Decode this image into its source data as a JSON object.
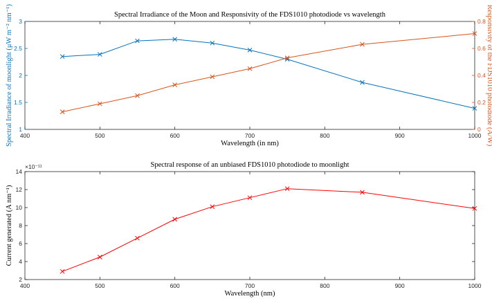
{
  "chart_data": [
    {
      "type": "line",
      "title": "Spectral Irradiance of the Moon and Responsivity of the FDS1010 photodiode vs wavelength",
      "xlabel": "Wavelength (in nm)",
      "xlim": [
        400,
        1000
      ],
      "x_ticks": [
        "400",
        "500",
        "600",
        "700",
        "800",
        "900",
        "1000"
      ],
      "axes": {
        "left": {
          "label": "Spectral Irradiance of moonlight (μW m⁻² nm⁻¹)",
          "ylim": [
            1,
            3
          ],
          "ticks": [
            "1",
            "1.5",
            "2",
            "2.5",
            "3"
          ],
          "color": "#0072bd"
        },
        "right": {
          "label": "Responsivity of the FDS1010 photodiode (A/W)",
          "ylim": [
            0,
            0.8
          ],
          "ticks": [
            "0",
            "0.2",
            "0.4",
            "0.6",
            "0.8"
          ],
          "color": "#d95319"
        }
      },
      "series": [
        {
          "axis": "left",
          "color": "#0072bd",
          "marker": "x",
          "x": [
            450,
            500,
            550,
            600,
            650,
            700,
            750,
            850,
            1000
          ],
          "values": [
            2.35,
            2.39,
            2.64,
            2.67,
            2.6,
            2.47,
            2.3,
            1.87,
            1.39
          ]
        },
        {
          "axis": "right",
          "color": "#d95319",
          "marker": "x",
          "x": [
            450,
            500,
            550,
            600,
            650,
            700,
            750,
            850,
            1000
          ],
          "values": [
            0.13,
            0.19,
            0.25,
            0.33,
            0.39,
            0.45,
            0.53,
            0.63,
            0.71
          ]
        }
      ],
      "grid": false
    },
    {
      "type": "line",
      "title": "Spectral response of an unbiased FDS1010 photodiode to moonlight",
      "xlabel": "Wavelength (nm)",
      "ylabel": "Current generated (A nm⁻¹)",
      "exponent_label": "×10⁻¹¹",
      "xlim": [
        400,
        1000
      ],
      "ylim": [
        2,
        14
      ],
      "x_ticks": [
        "400",
        "500",
        "600",
        "700",
        "800",
        "900",
        "1000"
      ],
      "y_ticks": [
        "2",
        "4",
        "6",
        "8",
        "10",
        "12",
        "14"
      ],
      "series": [
        {
          "color": "#ff0000",
          "marker": "x",
          "x": [
            450,
            500,
            550,
            600,
            650,
            700,
            750,
            850,
            1000
          ],
          "values": [
            2.9,
            4.5,
            6.6,
            8.7,
            10.1,
            11.1,
            12.1,
            11.7,
            9.9
          ]
        }
      ],
      "grid": false
    }
  ]
}
